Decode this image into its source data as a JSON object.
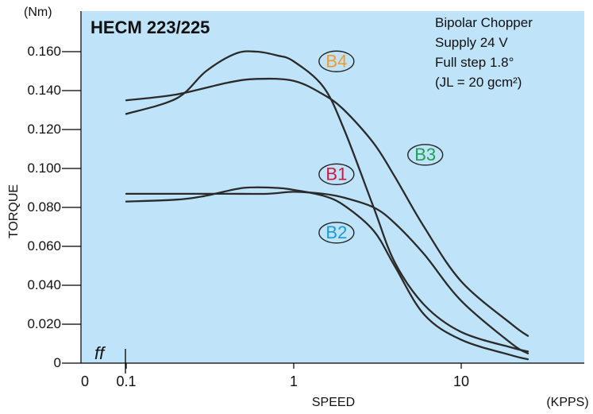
{
  "chart_data": {
    "type": "line",
    "title": "HECM 223/225",
    "xlabel": "SPEED",
    "xunit": "(KPPS)",
    "ylabel": "TORQUE",
    "yunit": "(Nm)",
    "xscale": "log",
    "xlim": [
      0.1,
      35
    ],
    "ylim": [
      0,
      0.18
    ],
    "grid": false,
    "background": "#bfe3f8",
    "x_tick_labels": [
      {
        "value": 0.1,
        "label": "0.1"
      },
      {
        "value": 1,
        "label": "1"
      },
      {
        "value": 10,
        "label": "10"
      }
    ],
    "x_origin_label": "0",
    "axis_break_label": "ff",
    "y_ticks": [
      0,
      0.02,
      0.04,
      0.06,
      0.08,
      0.1,
      0.12,
      0.14,
      0.16
    ],
    "y_tick_labels": [
      "0",
      "0.020",
      "0.040",
      "0.060",
      "0.080",
      "0.100",
      "0.120",
      "0.140",
      "0.160"
    ],
    "annotations": [
      "Bipolar Chopper",
      "Supply 24 V",
      "Full step 1.8°",
      "(JL = 20 gcm²)"
    ],
    "series": [
      {
        "name": "B1",
        "color": "#d6153d",
        "x": [
          0.1,
          0.2,
          0.4,
          0.7,
          1.0,
          1.5,
          2.0,
          3.0,
          4.0,
          6.0,
          10.0,
          20.0,
          25.0
        ],
        "y": [
          0.087,
          0.087,
          0.087,
          0.087,
          0.088,
          0.087,
          0.085,
          0.08,
          0.072,
          0.056,
          0.032,
          0.01,
          0.005
        ]
      },
      {
        "name": "B2",
        "color": "#1a9bd7",
        "x": [
          0.1,
          0.2,
          0.3,
          0.5,
          0.8,
          1.0,
          1.5,
          2.0,
          3.0,
          4.0,
          6.0,
          10.0,
          20.0,
          25.0
        ],
        "y": [
          0.083,
          0.084,
          0.086,
          0.09,
          0.09,
          0.089,
          0.086,
          0.081,
          0.068,
          0.05,
          0.025,
          0.012,
          0.004,
          0.002
        ]
      },
      {
        "name": "B3",
        "color": "#1f9e55",
        "x": [
          0.1,
          0.2,
          0.4,
          0.6,
          1.0,
          1.5,
          2.0,
          3.0,
          4.0,
          6.0,
          10.0,
          20.0,
          25.0
        ],
        "y": [
          0.135,
          0.138,
          0.144,
          0.146,
          0.145,
          0.138,
          0.13,
          0.113,
          0.096,
          0.07,
          0.042,
          0.02,
          0.014
        ]
      },
      {
        "name": "B4",
        "color": "#f39a2b",
        "x": [
          0.1,
          0.2,
          0.3,
          0.45,
          0.6,
          0.8,
          1.0,
          1.5,
          2.0,
          3.0,
          4.0,
          6.0,
          10.0,
          20.0,
          25.0
        ],
        "y": [
          0.128,
          0.136,
          0.15,
          0.159,
          0.16,
          0.158,
          0.155,
          0.142,
          0.12,
          0.08,
          0.052,
          0.03,
          0.016,
          0.008,
          0.006
        ]
      }
    ],
    "series_label_points": {
      "B1": {
        "x": 1.8,
        "y": 0.097
      },
      "B2": {
        "x": 1.8,
        "y": 0.067
      },
      "B3": {
        "x": 6.1,
        "y": 0.107
      },
      "B4": {
        "x": 1.8,
        "y": 0.155
      }
    }
  }
}
